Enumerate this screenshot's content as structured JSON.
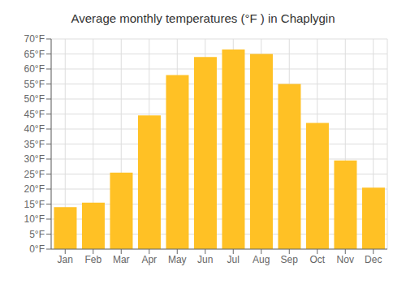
{
  "chart_data": {
    "type": "bar",
    "title": "Average monthly temperatures (°F ) in Chaplygin",
    "categories": [
      "Jan",
      "Feb",
      "Mar",
      "Apr",
      "May",
      "Jun",
      "Jul",
      "Aug",
      "Sep",
      "Oct",
      "Nov",
      "Dec"
    ],
    "values": [
      14,
      15.5,
      25.5,
      44.5,
      58,
      64,
      66.5,
      65,
      55,
      42,
      29.5,
      20.5
    ],
    "color": "#FFC125",
    "ylim": [
      0,
      70
    ],
    "yticks": [
      {
        "value": 0,
        "label": "0°F"
      },
      {
        "value": 5,
        "label": "5°F"
      },
      {
        "value": 10,
        "label": "10°F"
      },
      {
        "value": 15,
        "label": "15°F"
      },
      {
        "value": 20,
        "label": "20°F"
      },
      {
        "value": 25,
        "label": "25°F"
      },
      {
        "value": 30,
        "label": "30°F"
      },
      {
        "value": 35,
        "label": "35°F"
      },
      {
        "value": 40,
        "label": "40°F"
      },
      {
        "value": 45,
        "label": "45°F"
      },
      {
        "value": 50,
        "label": "50°F"
      },
      {
        "value": 55,
        "label": "55°F"
      },
      {
        "value": 60,
        "label": "60°F"
      },
      {
        "value": 65,
        "label": "65°F"
      },
      {
        "value": 70,
        "label": "70°F"
      }
    ],
    "grid": true
  }
}
